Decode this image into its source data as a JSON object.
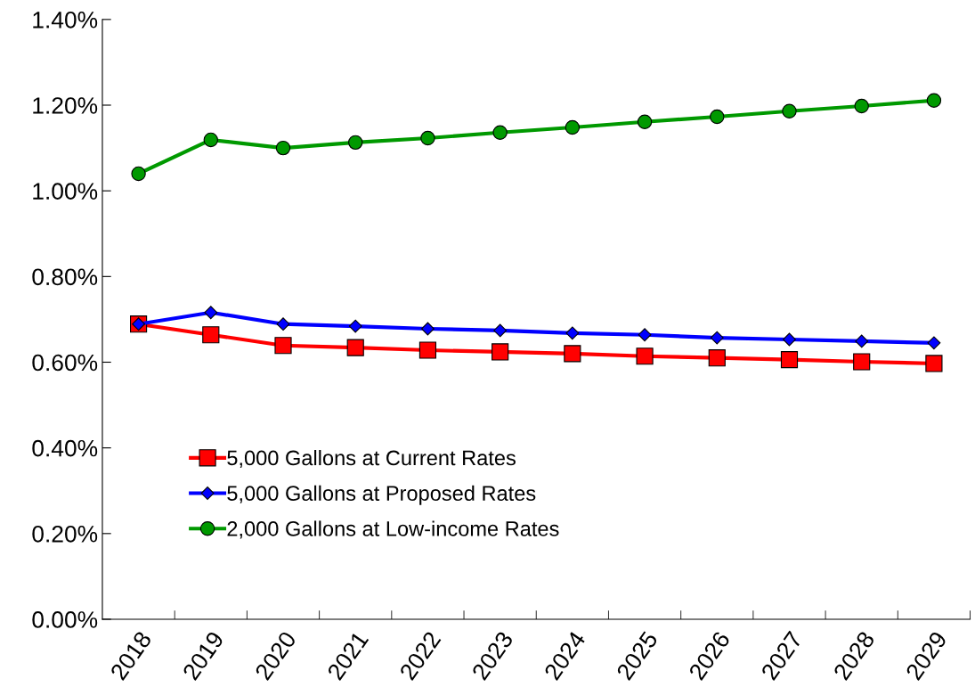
{
  "chart_data": {
    "type": "line",
    "categories": [
      "2018",
      "2019",
      "2020",
      "2021",
      "2022",
      "2023",
      "2024",
      "2025",
      "2026",
      "2027",
      "2028",
      "2029"
    ],
    "series": [
      {
        "name": "5,000 Gallons at Current Rates",
        "color": "#ff0000",
        "marker": "square",
        "values": [
          0.689,
          0.664,
          0.639,
          0.634,
          0.628,
          0.624,
          0.62,
          0.614,
          0.61,
          0.606,
          0.601,
          0.597
        ]
      },
      {
        "name": "5,000 Gallons at Proposed Rates",
        "color": "#0000ff",
        "marker": "diamond",
        "values": [
          0.689,
          0.716,
          0.689,
          0.684,
          0.678,
          0.674,
          0.668,
          0.664,
          0.657,
          0.653,
          0.649,
          0.645
        ]
      },
      {
        "name": "2,000 Gallons at Low-income Rates",
        "color": "#009900",
        "marker": "circle",
        "values": [
          1.04,
          1.119,
          1.1,
          1.113,
          1.123,
          1.136,
          1.148,
          1.161,
          1.173,
          1.186,
          1.198,
          1.211
        ]
      }
    ],
    "ylim": [
      0,
      1.4
    ],
    "yticks": [
      {
        "value": 0,
        "label": "0.00%"
      },
      {
        "value": 0.2,
        "label": "0.20%"
      },
      {
        "value": 0.4,
        "label": "0.40%"
      },
      {
        "value": 0.6,
        "label": "0.60%"
      },
      {
        "value": 0.8,
        "label": "0.80%"
      },
      {
        "value": 1.0,
        "label": "1.00%"
      },
      {
        "value": 1.2,
        "label": "1.20%"
      },
      {
        "value": 1.4,
        "label": "1.40%"
      }
    ],
    "grid": false,
    "legend": "bottom left",
    "line_style": "solid"
  }
}
